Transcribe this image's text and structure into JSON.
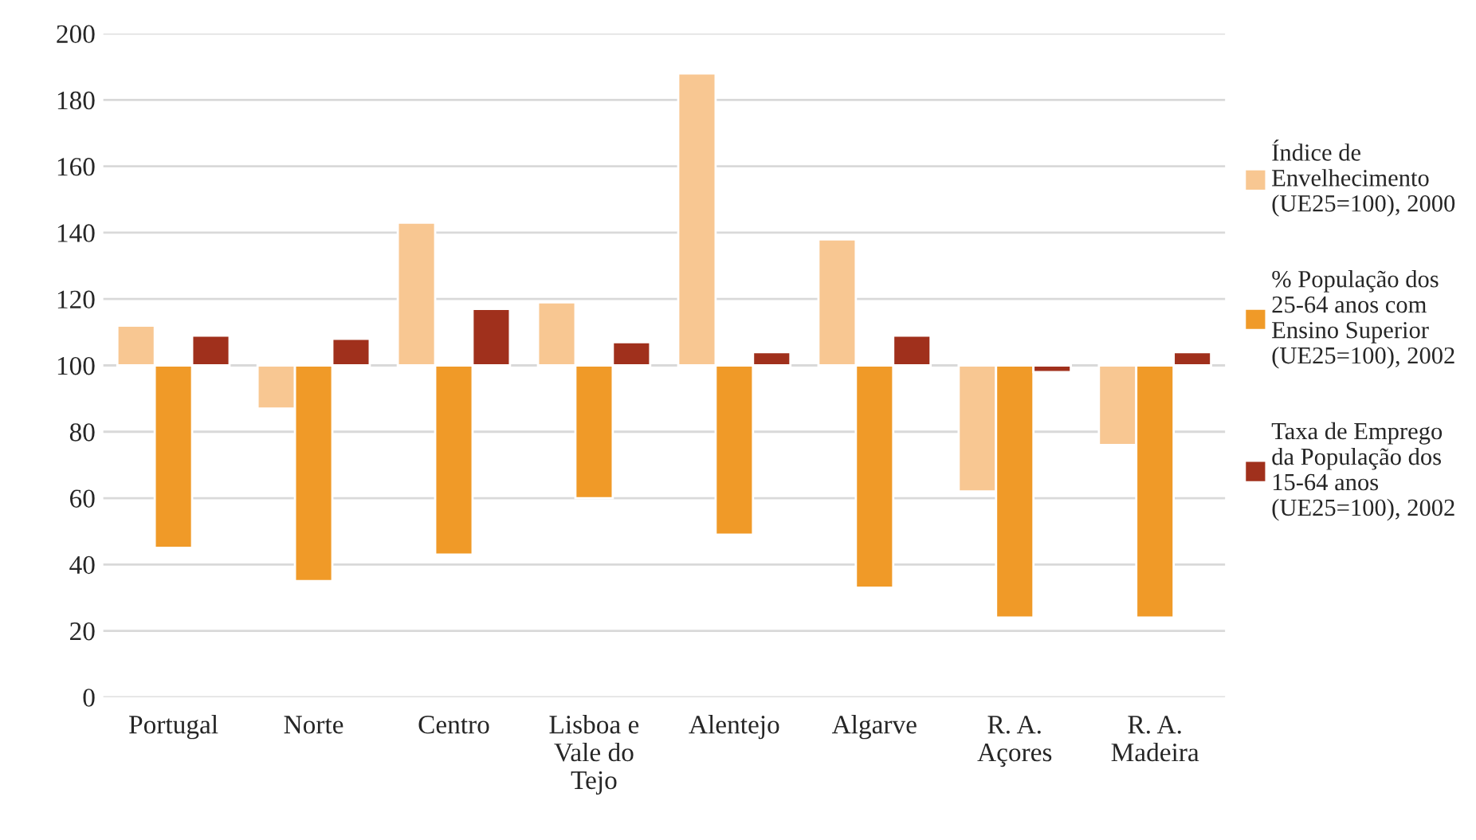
{
  "chart_data": {
    "type": "bar",
    "categories": [
      "Portugal",
      "Norte",
      "Centro",
      "Lisboa e\nVale do\nTejo",
      "Alentejo",
      "Algarve",
      "R. A.\nAçores",
      "R. A.\nMadeira"
    ],
    "series": [
      {
        "name": "Índice de\nEnvelhecimento\n(UE25=100), 2000",
        "color": "#f8c792",
        "base": [
          100,
          100,
          100,
          100,
          100,
          100,
          100,
          100
        ],
        "values": [
          12,
          -13,
          43,
          19,
          88,
          38,
          -38,
          -24
        ]
      },
      {
        "name": "% População dos\n25-64 anos com\nEnsino Superior\n(UE25=100), 2002",
        "color": "#f09a28",
        "base": [
          100,
          100,
          100,
          100,
          100,
          100,
          100,
          100
        ],
        "values": [
          -55,
          -65,
          -57,
          -40,
          -51,
          -67,
          -76,
          -76
        ]
      },
      {
        "name": "Taxa de Emprego\nda População dos\n15-64 anos\n(UE25=100), 2002",
        "color": "#a0301c",
        "base": [
          100,
          100,
          100,
          100,
          100,
          100,
          100,
          100
        ],
        "values": [
          9,
          8,
          17,
          7,
          4,
          9,
          -2,
          4
        ]
      }
    ],
    "ylim": [
      0,
      200
    ],
    "yticks": [
      0,
      20,
      40,
      60,
      80,
      100,
      120,
      140,
      160,
      180,
      200
    ],
    "grid": "y",
    "legend": "right"
  }
}
